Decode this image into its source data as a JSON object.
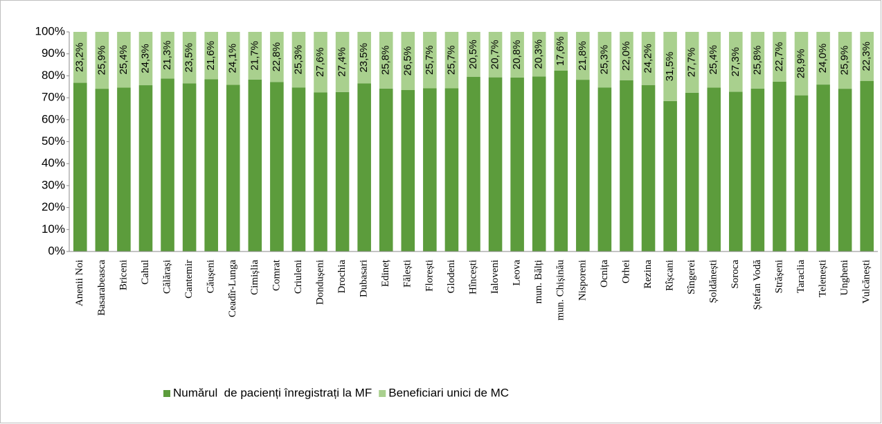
{
  "chart_data": {
    "type": "stacked_bar",
    "categories": [
      "Anenii Noi",
      "Basarabeasca",
      "Briceni",
      "Cahul",
      "Călărași",
      "Cantemir",
      "Căușeni",
      "Ceadîr-Lunga",
      "Cimișlia",
      "Comrat",
      "Criuleni",
      "Dondușeni",
      "Drochia",
      "Dubasari",
      "Edineț",
      "Fălești",
      "Florești",
      "Glodeni",
      "Hîncești",
      "Ialoveni",
      "Leova",
      "mun. Bălți",
      "mun. Chișinău",
      "Nisporeni",
      "Ocnița",
      "Orhei",
      "Rezina",
      "Rîșcani",
      "Sîngerei",
      "Șoldănești",
      "Soroca",
      "Ștefan Vodă",
      "Strășeni",
      "Taraclia",
      "Telenești",
      "Ungheni",
      "Vulcănești"
    ],
    "series": [
      {
        "name": "Numărul  de pacienți înregistrați la MF",
        "color": "#5c9c3c",
        "values": [
          76.8,
          74.1,
          74.6,
          75.7,
          78.7,
          76.5,
          78.4,
          75.9,
          78.3,
          77.2,
          74.7,
          72.4,
          72.6,
          76.5,
          74.2,
          73.5,
          74.3,
          74.3,
          79.5,
          79.3,
          79.2,
          79.7,
          82.4,
          78.2,
          74.7,
          78.0,
          75.8,
          68.5,
          72.3,
          74.6,
          72.7,
          74.2,
          77.3,
          71.1,
          76.0,
          74.1,
          77.7
        ]
      },
      {
        "name": "Beneficiari unici de MC",
        "color": "#a9d08e",
        "values": [
          23.2,
          25.9,
          25.4,
          24.3,
          21.3,
          23.5,
          21.6,
          24.1,
          21.7,
          22.8,
          25.3,
          27.6,
          27.4,
          23.5,
          25.8,
          26.5,
          25.7,
          25.7,
          20.5,
          20.7,
          20.8,
          20.3,
          17.6,
          21.8,
          25.3,
          22.0,
          24.2,
          31.5,
          27.7,
          25.4,
          27.3,
          25.8,
          22.7,
          28.9,
          24.0,
          25.9,
          22.3
        ],
        "value_labels": [
          "23,2%",
          "25,9%",
          "25,4%",
          "24,3%",
          "21,3%",
          "23,5%",
          "21,6%",
          "24,1%",
          "21,7%",
          "22,8%",
          "25,3%",
          "27,6%",
          "27,4%",
          "23,5%",
          "25,8%",
          "26,5%",
          "25,7%",
          "25,7%",
          "20,5%",
          "20,7%",
          "20,8%",
          "20,3%",
          "17,6%",
          "21,8%",
          "25,3%",
          "22,0%",
          "24,2%",
          "31,5%",
          "27,7%",
          "25,4%",
          "27,3%",
          "25,8%",
          "22,7%",
          "28,9%",
          "24,0%",
          "25,9%",
          "22,3%"
        ]
      }
    ],
    "ylim": [
      0,
      100
    ],
    "yticks": [
      {
        "value": 0,
        "label": "0%"
      },
      {
        "value": 10,
        "label": "10%"
      },
      {
        "value": 20,
        "label": "20%"
      },
      {
        "value": 30,
        "label": "30%"
      },
      {
        "value": 40,
        "label": "40%"
      },
      {
        "value": 50,
        "label": "50%"
      },
      {
        "value": 60,
        "label": "60%"
      },
      {
        "value": 70,
        "label": "70%"
      },
      {
        "value": 80,
        "label": "80%"
      },
      {
        "value": 90,
        "label": "90%"
      },
      {
        "value": 100,
        "label": "100%"
      }
    ],
    "legend": "bottom"
  }
}
